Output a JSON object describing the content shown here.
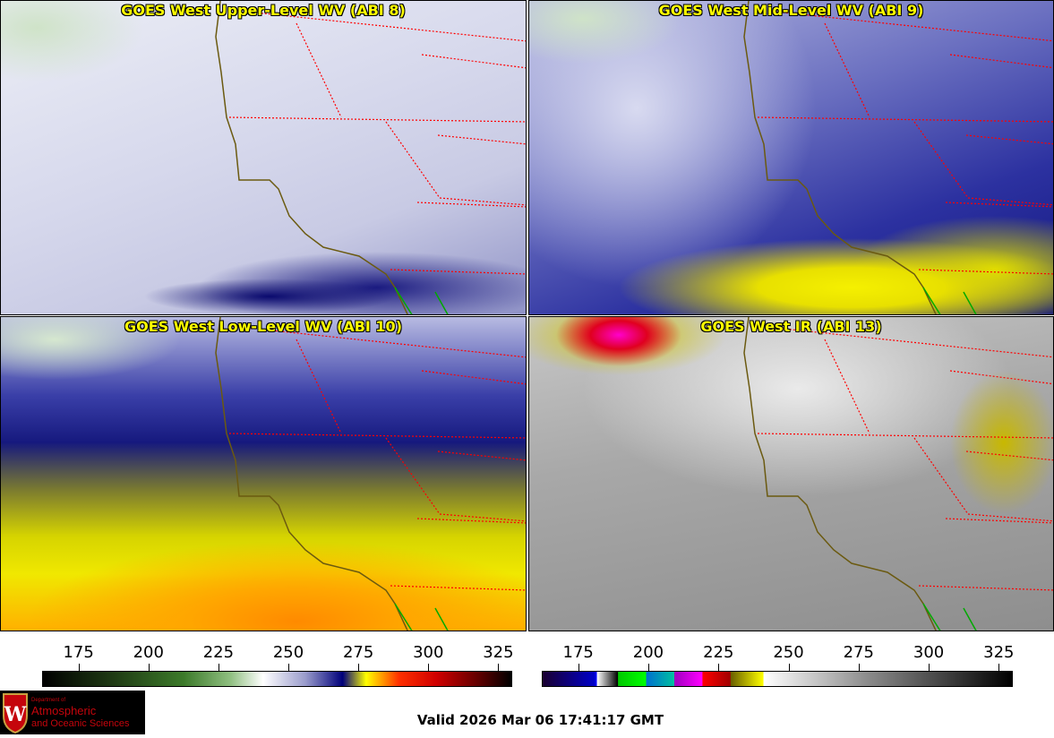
{
  "panels": [
    {
      "title": "GOES West Upper-Level WV (ABI 8)"
    },
    {
      "title": "GOES West Mid-Level WV (ABI 9)"
    },
    {
      "title": "GOES West Low-Level WV (ABI 10)"
    },
    {
      "title": "GOES West IR (ABI 13)"
    }
  ],
  "colorbars": {
    "wv": {
      "range": [
        162,
        330
      ],
      "ticks": [
        "175",
        "200",
        "225",
        "250",
        "275",
        "300",
        "325"
      ]
    },
    "ir": {
      "range": [
        162,
        330
      ],
      "ticks": [
        "175",
        "200",
        "225",
        "250",
        "275",
        "300",
        "325"
      ]
    }
  },
  "logo": {
    "line1": "Department of",
    "line2": "Atmospheric",
    "line3": "and Oceanic Sciences"
  },
  "valid_time": "Valid 2026 Mar 06 17:41:17 GMT",
  "colors": {
    "title": "#ffff00",
    "state_borders": "#ff0000",
    "coast": "#6b5a10",
    "mexico": "#00aa00"
  }
}
